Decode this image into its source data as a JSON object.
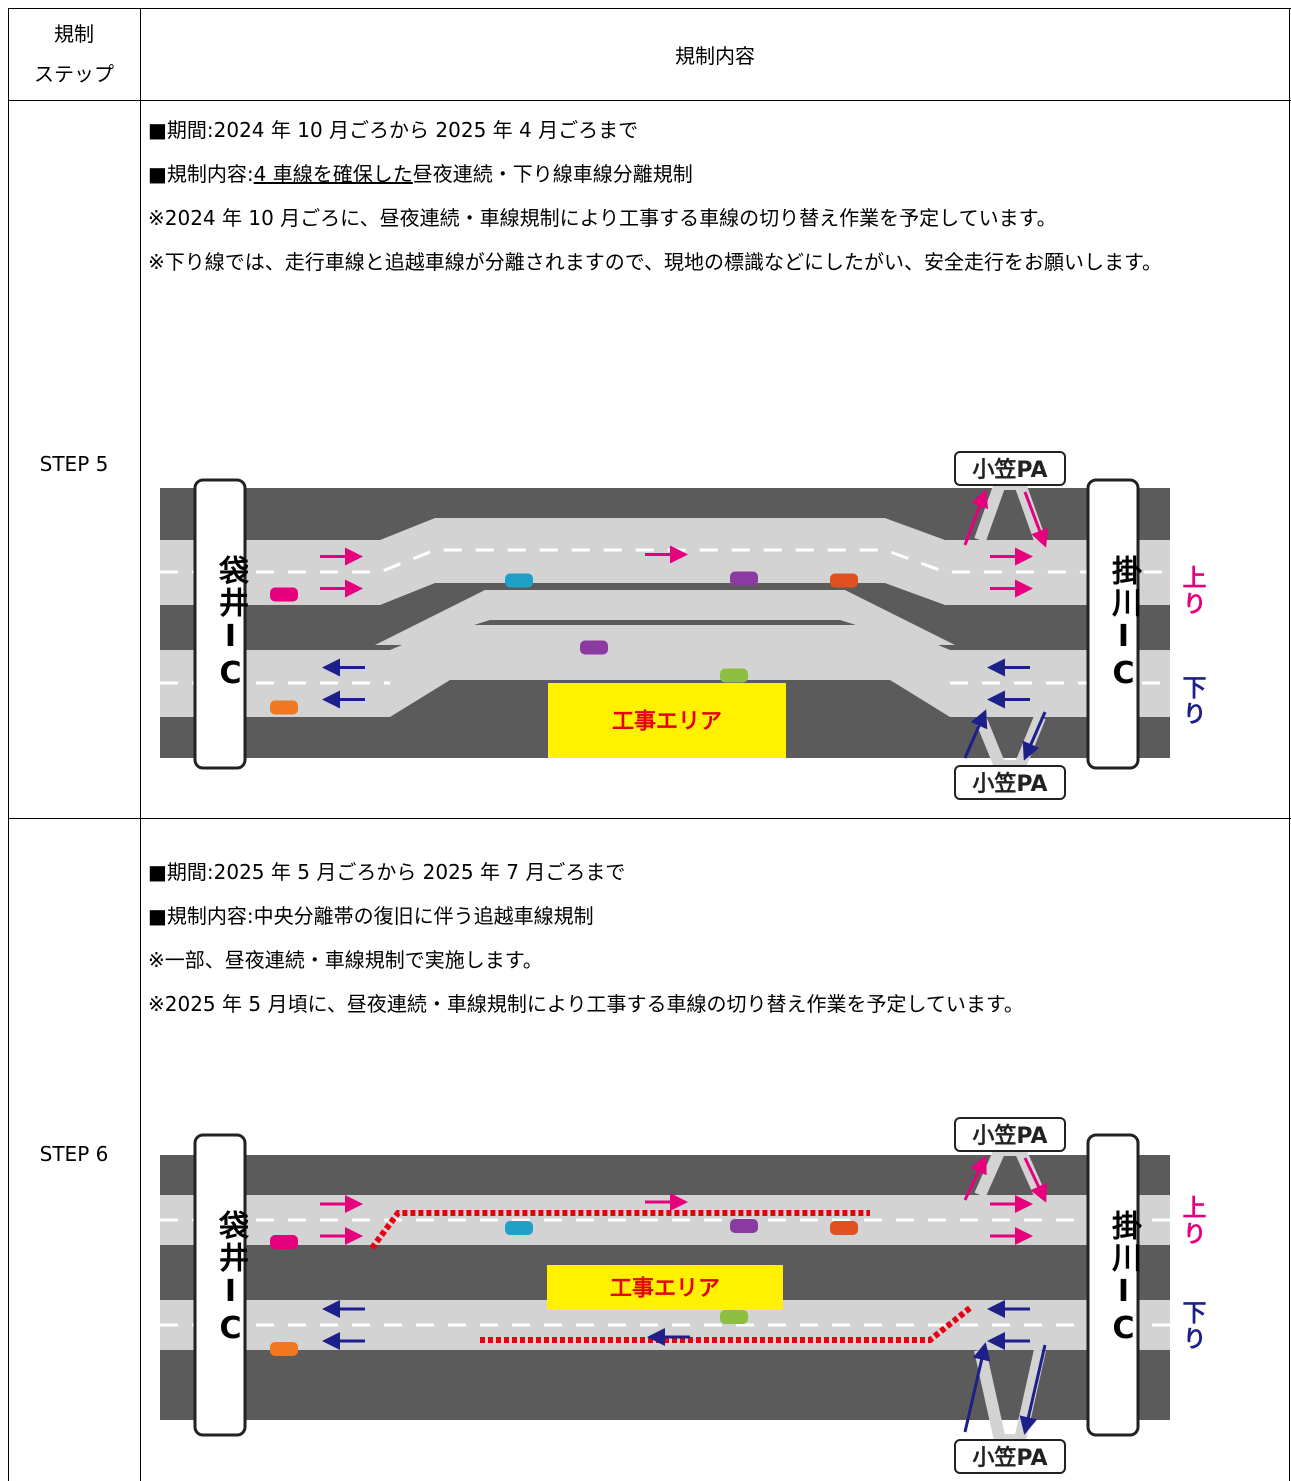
{
  "table": {
    "header": {
      "step": [
        "規制",
        "ステップ"
      ],
      "content": "規制内容"
    },
    "rows": [
      {
        "step": "STEP 5",
        "period": "■期間:2024 年 10 月ごろから 2025 年 4 月ごろまで",
        "content": [
          "■規制内容:",
          "4 車線を確保した",
          "昼夜連続・下り線車線分離規制"
        ],
        "notes": [
          "※2024 年 10 月ごろに、昼夜連続・車線規制により工事する車線の切り替え作業を予定しています。",
          "※下り線では、走行車線と追越車線が分離されますので、現地の標識などにしたがい、安全走行をお願いします。"
        ],
        "diagram": {
          "left_ic": "袋井IC",
          "right_ic": "掛川IC",
          "up": "上り",
          "down": "下り",
          "pa_top": "小笠PA",
          "pa_bottom": "小笠PA",
          "work_area": "工事エリア"
        }
      },
      {
        "step": "STEP 6",
        "period": "■期間:2025 年 5 月ごろから 2025 年 7 月ごろまで",
        "content": [
          "■規制内容:中央分離帯の復旧に伴う追越車線規制"
        ],
        "notes": [
          "※一部、昼夜連続・車線規制で実施します。",
          "※2025 年 5 月頃に、昼夜連続・車線規制により工事する車線の切り替え作業を予定しています。"
        ],
        "diagram": {
          "left_ic": "袋井IC",
          "right_ic": "掛川IC",
          "up": "上り",
          "down": "下り",
          "pa_top": "小笠PA",
          "pa_bottom": "小笠PA",
          "work_area": "工事エリア"
        }
      }
    ]
  }
}
